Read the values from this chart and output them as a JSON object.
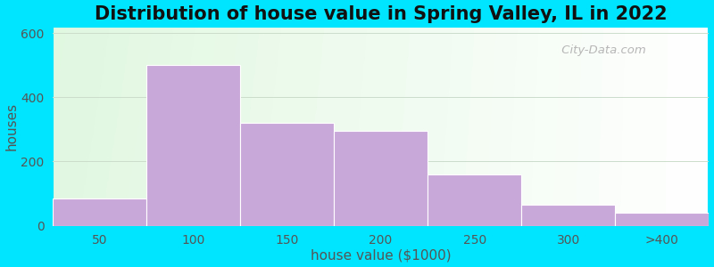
{
  "title": "Distribution of house value in Spring Valley, IL in 2022",
  "xlabel": "house value ($1000)",
  "ylabel": "houses",
  "bar_labels": [
    "50",
    "100",
    "150",
    "200",
    "250",
    "300",
    ">400"
  ],
  "bar_heights": [
    85,
    500,
    320,
    295,
    160,
    65,
    40
  ],
  "bar_color": "#c8a8d8",
  "bar_edge_color": "#ffffff",
  "ylim": [
    0,
    620
  ],
  "yticks": [
    0,
    200,
    400,
    600
  ],
  "background_outer": "#00e5ff",
  "title_fontsize": 15,
  "axis_label_fontsize": 11,
  "tick_fontsize": 10,
  "tick_color": "#555555",
  "watermark_text": " City-Data.com",
  "grid_color": "#ccddcc",
  "spine_color": "#00e5ff"
}
